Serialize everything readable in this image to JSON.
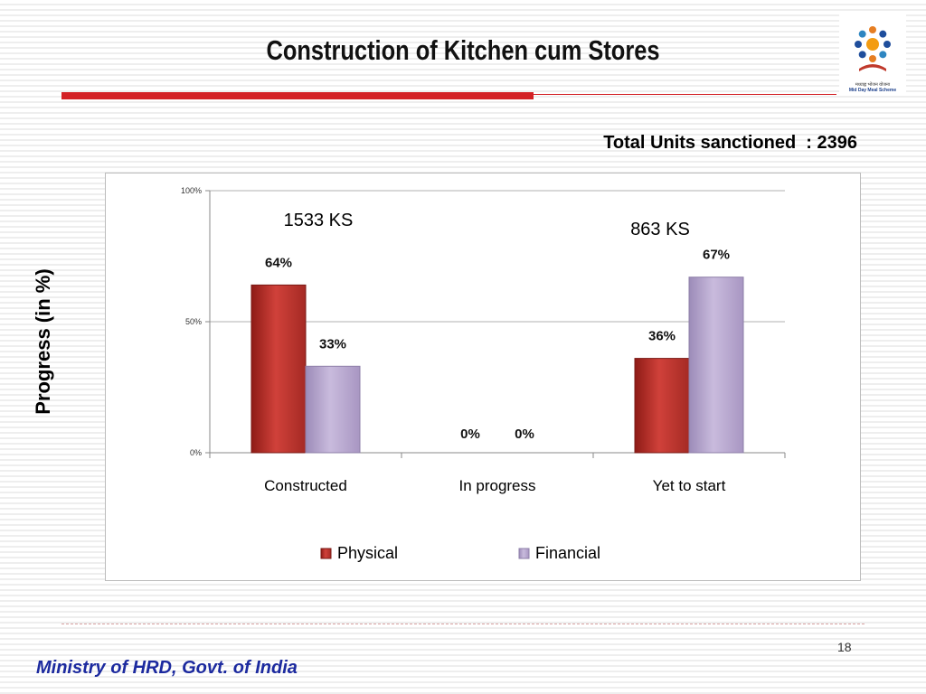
{
  "slide": {
    "title": "Construction of Kitchen cum Stores",
    "total_units": "Total Units sanctioned  : 2396",
    "ylabel": "Progress (in %)",
    "page_number": "18",
    "footer": "Ministry of HRD, Govt. of India",
    "logo": {
      "icon": "mid-day-meal-logo",
      "text_hindi": "मध्याह्न भोजन योजना",
      "text_english": "Mid Day Meal Scheme"
    }
  },
  "chart_data": {
    "type": "bar",
    "categories": [
      "Constructed",
      "In progress",
      "Yet to start"
    ],
    "series": [
      {
        "name": "Physical",
        "values": [
          64,
          0,
          36
        ],
        "labels": [
          "64%",
          "0%",
          "36%"
        ],
        "color": "#c0392b"
      },
      {
        "name": "Financial",
        "values": [
          33,
          0,
          67
        ],
        "labels": [
          "33%",
          "0%",
          "67%"
        ],
        "color": "#b3a2c7"
      }
    ],
    "ylim": [
      0,
      100
    ],
    "yticks": [
      {
        "value": 0,
        "label": "0%"
      },
      {
        "value": 50,
        "label": "50%"
      },
      {
        "value": 100,
        "label": "100%"
      }
    ],
    "annotations": [
      {
        "text": "1533 KS",
        "category": "Constructed"
      },
      {
        "text": "863 KS",
        "category": "Yet to start"
      }
    ],
    "grid": true,
    "legend": "bottom"
  }
}
